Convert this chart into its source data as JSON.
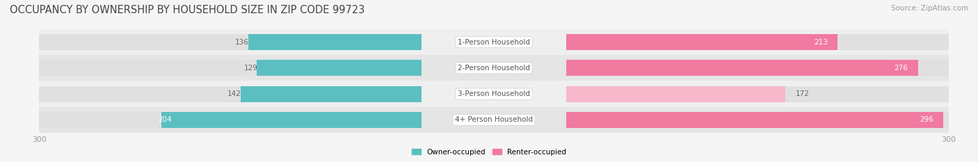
{
  "title": "OCCUPANCY BY OWNERSHIP BY HOUSEHOLD SIZE IN ZIP CODE 99723",
  "source": "Source: ZipAtlas.com",
  "categories": [
    "1-Person Household",
    "2-Person Household",
    "3-Person Household",
    "4+ Person Household"
  ],
  "owner_values": [
    136,
    129,
    142,
    204
  ],
  "renter_values": [
    213,
    276,
    172,
    296
  ],
  "owner_color": "#5bbfc2",
  "renter_color": "#f07aa0",
  "renter_color_light": "#f7b8cc",
  "owner_label": "Owner-occupied",
  "renter_label": "Renter-occupied",
  "axis_max": 300,
  "bg_color": "#f5f5f5",
  "bar_bg_color": "#e0e0e0",
  "title_fontsize": 10.5,
  "source_fontsize": 7.5,
  "label_fontsize": 7.5,
  "tick_fontsize": 8,
  "center_label_color": "#555555",
  "bar_height": 0.62,
  "row_colors": [
    "#efefef",
    "#e5e5e5",
    "#efefef",
    "#e5e5e5"
  ]
}
